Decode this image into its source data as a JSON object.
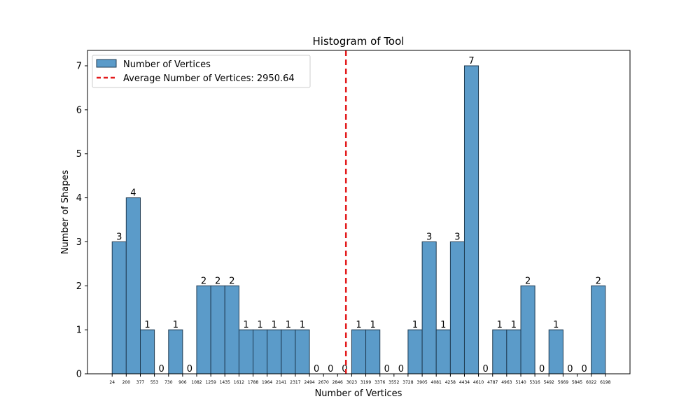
{
  "chart_data": {
    "type": "bar",
    "title": "Histogram of Tool",
    "xlabel": "Number of Vertices",
    "ylabel": "Number of Shapes",
    "ylim": [
      0,
      7.35
    ],
    "yticks": [
      0,
      1,
      2,
      3,
      4,
      5,
      6,
      7
    ],
    "bin_edges": [
      24,
      200,
      377,
      553,
      730,
      906,
      1082,
      1259,
      1435,
      1612,
      1788,
      1964,
      2141,
      2317,
      2494,
      2670,
      2846,
      3023,
      3199,
      3376,
      3552,
      3728,
      3905,
      4081,
      4258,
      4434,
      4610,
      4787,
      4963,
      5140,
      5316,
      5492,
      5669,
      5845,
      6022,
      6198
    ],
    "tick_labels": [
      "24",
      "200",
      "377",
      "553",
      "730",
      "906",
      "1082",
      "1259",
      "1435",
      "1612",
      "1788",
      "1964",
      "2141",
      "2317",
      "2494",
      "2670",
      "2846",
      "3023",
      "3199",
      "3376",
      "3552",
      "3728",
      "3905",
      "4081",
      "4258",
      "4434",
      "4610",
      "4787",
      "4963",
      "5140",
      "5316",
      "5492",
      "5669",
      "5845",
      "6022",
      "6198"
    ],
    "counts": [
      3,
      4,
      1,
      0,
      1,
      0,
      2,
      2,
      2,
      1,
      1,
      1,
      1,
      1,
      0,
      0,
      0,
      1,
      1,
      0,
      0,
      1,
      3,
      1,
      3,
      7,
      0,
      1,
      1,
      2,
      0,
      1,
      0,
      0,
      2
    ],
    "average": 2950.64,
    "series": [
      {
        "name": "Number of Vertices",
        "color": "#5b9bc9"
      }
    ],
    "average_line": {
      "label": "Average Number of Vertices: 2950.64",
      "color": "#e31a1c"
    },
    "legend_position": "upper-left",
    "grid": false
  }
}
